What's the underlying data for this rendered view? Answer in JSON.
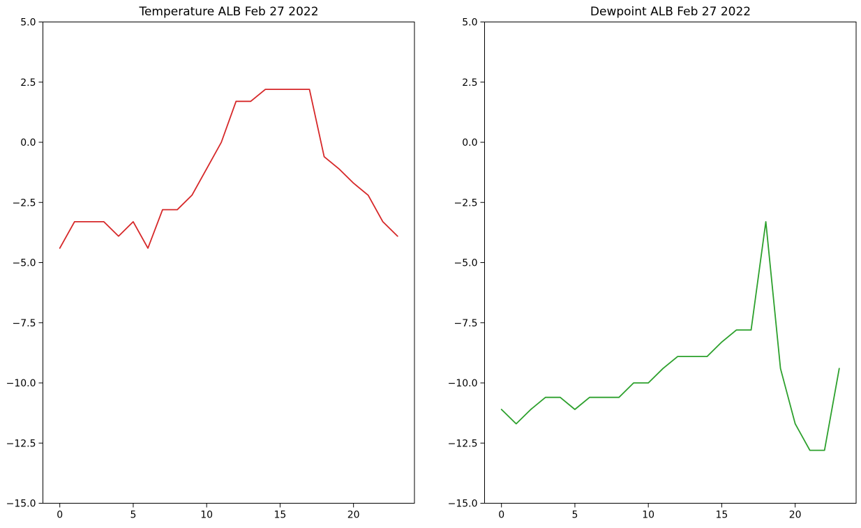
{
  "page": {
    "background": "#ffffff"
  },
  "chart_data": [
    {
      "type": "line",
      "title": "Temperature ALB Feb 27 2022",
      "x": [
        0,
        1,
        2,
        3,
        4,
        5,
        6,
        7,
        8,
        9,
        10,
        11,
        12,
        13,
        14,
        15,
        16,
        17,
        18,
        19,
        20,
        21,
        22,
        23
      ],
      "values": [
        -4.4,
        -3.3,
        -3.3,
        -3.3,
        -3.9,
        -3.3,
        -4.4,
        -2.8,
        -2.8,
        -2.2,
        -1.1,
        0.0,
        1.7,
        1.7,
        2.2,
        2.2,
        2.2,
        2.2,
        -0.6,
        -1.1,
        -1.7,
        -2.2,
        -3.3,
        -3.9
      ],
      "line_color": "#d62728",
      "xlabel": "",
      "ylabel": "",
      "xlim": [
        -1.15,
        24.15
      ],
      "ylim": [
        -15.0,
        5.0
      ],
      "xticks": [
        0,
        5,
        10,
        15,
        20
      ],
      "xtick_labels": [
        "0",
        "5",
        "10",
        "15",
        "20"
      ],
      "yticks": [
        5.0,
        2.5,
        0.0,
        -2.5,
        -5.0,
        -7.5,
        -10.0,
        -12.5,
        -15.0
      ],
      "ytick_labels": [
        "5.0",
        "2.5",
        "0.0",
        "−2.5",
        "−5.0",
        "−7.5",
        "−10.0",
        "−12.5",
        "−15.0"
      ],
      "grid": false,
      "legend": "none"
    },
    {
      "type": "line",
      "title": "Dewpoint ALB Feb 27 2022",
      "x": [
        0,
        1,
        2,
        3,
        4,
        5,
        6,
        7,
        8,
        9,
        10,
        11,
        12,
        13,
        14,
        15,
        16,
        17,
        18,
        19,
        20,
        21,
        22,
        23
      ],
      "values": [
        -11.1,
        -11.7,
        -11.1,
        -10.6,
        -10.6,
        -11.1,
        -10.6,
        -10.6,
        -10.6,
        -10.0,
        -10.0,
        -9.4,
        -8.9,
        -8.9,
        -8.9,
        -8.3,
        -7.8,
        -7.8,
        -3.3,
        -9.4,
        -11.7,
        -12.8,
        -12.8,
        -9.4
      ],
      "line_color": "#2ca02c",
      "xlabel": "",
      "ylabel": "",
      "xlim": [
        -1.15,
        24.15
      ],
      "ylim": [
        -15.0,
        5.0
      ],
      "xticks": [
        0,
        5,
        10,
        15,
        20
      ],
      "xtick_labels": [
        "0",
        "5",
        "10",
        "15",
        "20"
      ],
      "yticks": [
        5.0,
        2.5,
        0.0,
        -2.5,
        -5.0,
        -7.5,
        -10.0,
        -12.5,
        -15.0
      ],
      "ytick_labels": [
        "5.0",
        "2.5",
        "0.0",
        "−2.5",
        "−5.0",
        "−7.5",
        "−10.0",
        "−12.5",
        "−15.0"
      ],
      "grid": false,
      "legend": "none"
    }
  ]
}
